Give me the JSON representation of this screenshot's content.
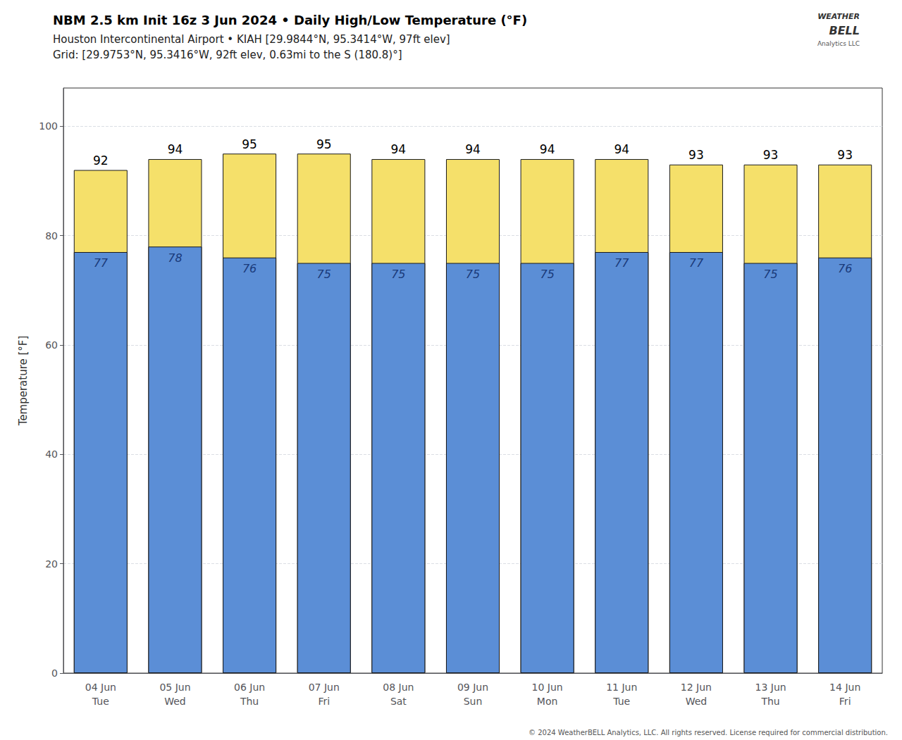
{
  "chart_data": {
    "type": "bar",
    "title": "NBM 2.5 km Init 16z 3 Jun 2024 • Daily High/Low Temperature (°F)",
    "subtitle": [
      "Houston Intercontinental Airport • KIAH [29.9844°N, 95.3414°W, 97ft elev]",
      "Grid: [29.9753°N, 95.3416°W, 92ft elev, 0.63mi to the S (180.8)°]"
    ],
    "annotations": [
      "© 2024 WeatherBELL Analytics, LLC. All rights reserved. License required for commercial distribution.",
      "WEATHER",
      "BELL",
      "Analytics LLC"
    ],
    "categories": [
      "04 Jun\nTue",
      "05 Jun\nWed",
      "06 Jun\nThu",
      "07 Jun\nFri",
      "08 Jun\nSat",
      "09 Jun\nSun",
      "10 Jun\nMon",
      "11 Jun\nTue",
      "12 Jun\nWed",
      "13 Jun\nThu",
      "14 Jun\nFri"
    ],
    "series": [
      {
        "color": "#F5E06A",
        "values": [
          92,
          94,
          95,
          95,
          94,
          94,
          94,
          94,
          93,
          93,
          93
        ]
      },
      {
        "color": "#5B8ED6",
        "values": [
          77,
          78,
          76,
          75,
          75,
          75,
          75,
          77,
          77,
          75,
          76
        ]
      }
    ],
    "ylabel": "Temperature [°F]",
    "ylim": [
      0,
      107
    ],
    "yticks": [
      0,
      20,
      40,
      60,
      80,
      100
    ],
    "grid": true,
    "data_labels": true
  }
}
